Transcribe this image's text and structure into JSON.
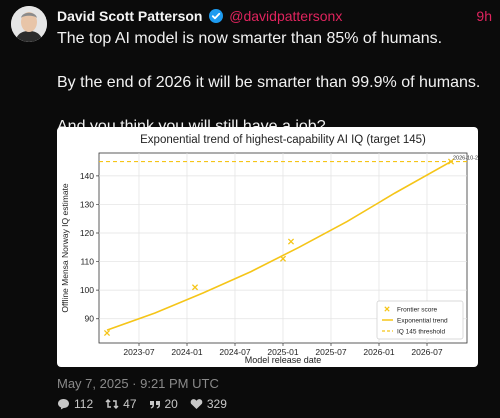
{
  "author": {
    "name": "David Scott Patterson",
    "handle": "@davidpattersonx",
    "time_ago": "9h"
  },
  "tweet": {
    "paragraphs": [
      "The top AI model is now smarter than 85% of humans.",
      "By the end of 2026 it will be smarter than 99.9% of humans.",
      "And you think you will still have a job?"
    ],
    "timestamp": "May 7, 2025 · 9:21 PM UTC"
  },
  "stats": {
    "replies": "112",
    "retweets": "47",
    "quotes": "20",
    "likes": "329"
  },
  "colors": {
    "accent": "#e0245e",
    "verified": "#1d9bf0",
    "trend": "#f5c518"
  },
  "chart_data": {
    "type": "scatter",
    "title": "Exponential trend of highest-capability AI IQ (target 145)",
    "xlabel": "Model release date",
    "ylabel": "Offline Mensa Norway IQ estimate",
    "x_ticks": [
      "2023-07",
      "2024-01",
      "2024-07",
      "2025-01",
      "2025-07",
      "2026-01",
      "2026-07"
    ],
    "y_ticks": [
      90,
      100,
      110,
      120,
      130,
      140
    ],
    "xlim": [
      "2023-02",
      "2026-12"
    ],
    "ylim": [
      81.5,
      148
    ],
    "grid": true,
    "series": [
      {
        "name": "Frontier score",
        "kind": "scatter",
        "points": [
          {
            "x": "2023-03",
            "y": 85
          },
          {
            "x": "2024-02",
            "y": 101
          },
          {
            "x": "2025-01",
            "y": 111
          },
          {
            "x": "2025-02",
            "y": 117
          }
        ]
      },
      {
        "name": "Exponential trend",
        "kind": "line",
        "points": [
          {
            "x": "2023-03",
            "y": 86
          },
          {
            "x": "2023-09",
            "y": 92
          },
          {
            "x": "2024-03",
            "y": 99
          },
          {
            "x": "2024-09",
            "y": 106.5
          },
          {
            "x": "2025-03",
            "y": 115
          },
          {
            "x": "2025-09",
            "y": 124
          },
          {
            "x": "2026-03",
            "y": 134
          },
          {
            "x": "2026-10",
            "y": 145
          }
        ]
      }
    ],
    "threshold": {
      "name": "IQ 145 threshold",
      "y": 145
    },
    "annotation": {
      "text": "2026-10-26",
      "x": "2026-10",
      "y": 145
    },
    "legend_position": "lower-right"
  }
}
